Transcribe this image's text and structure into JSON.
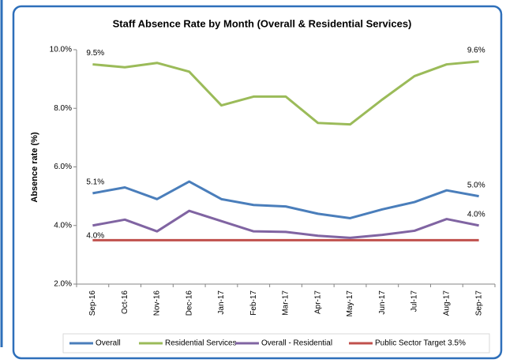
{
  "chart_data": {
    "type": "line",
    "title": "Staff Absence Rate by Month (Overall & Residential Services)",
    "y_label": "Absence rate (%)",
    "categories": [
      "Sep-16",
      "Oct-16",
      "Nov-16",
      "Dec-16",
      "Jan-17",
      "Feb-17",
      "Mar-17",
      "Apr-17",
      "May-17",
      "Jun-17",
      "Jul-17",
      "Aug-17",
      "Sep-17"
    ],
    "series": [
      {
        "name": "Overall",
        "color": "#4a7ebb",
        "values": [
          5.1,
          5.3,
          4.9,
          5.5,
          4.9,
          4.7,
          4.65,
          4.4,
          4.25,
          4.55,
          4.8,
          5.2,
          5.0
        ],
        "value_labels": [
          "5.1%",
          null,
          null,
          null,
          null,
          null,
          null,
          null,
          null,
          null,
          null,
          null,
          "5.0%"
        ]
      },
      {
        "name": "Residential Services",
        "color": "#9bbb59",
        "values": [
          9.5,
          9.4,
          9.55,
          9.25,
          8.1,
          8.4,
          8.4,
          7.5,
          7.45,
          8.3,
          9.1,
          9.5,
          9.6
        ],
        "value_labels": [
          "9.5%",
          null,
          null,
          null,
          null,
          null,
          null,
          null,
          null,
          null,
          null,
          null,
          "9.6%"
        ]
      },
      {
        "name": "Overall - Residential",
        "color": "#8064a2",
        "values": [
          4.0,
          4.2,
          3.8,
          4.5,
          4.15,
          3.8,
          3.78,
          3.65,
          3.58,
          3.68,
          3.82,
          4.22,
          4.0
        ],
        "value_labels": [
          "4.0%",
          null,
          null,
          null,
          null,
          null,
          null,
          null,
          null,
          null,
          null,
          null,
          "4.0%"
        ]
      },
      {
        "name": "Public Sector Target 3.5%",
        "color": "#c0504d",
        "values": [
          3.5,
          3.5,
          3.5,
          3.5,
          3.5,
          3.5,
          3.5,
          3.5,
          3.5,
          3.5,
          3.5,
          3.5,
          3.5
        ]
      }
    ],
    "ylim": [
      2,
      10
    ],
    "yticks": [
      {
        "value": 2,
        "label": "2.0%"
      },
      {
        "value": 4,
        "label": "4.0%"
      },
      {
        "value": 6,
        "label": "6.0%"
      },
      {
        "value": 8,
        "label": "8.0%"
      },
      {
        "value": 10,
        "label": "10.0%"
      }
    ],
    "grid": false
  }
}
